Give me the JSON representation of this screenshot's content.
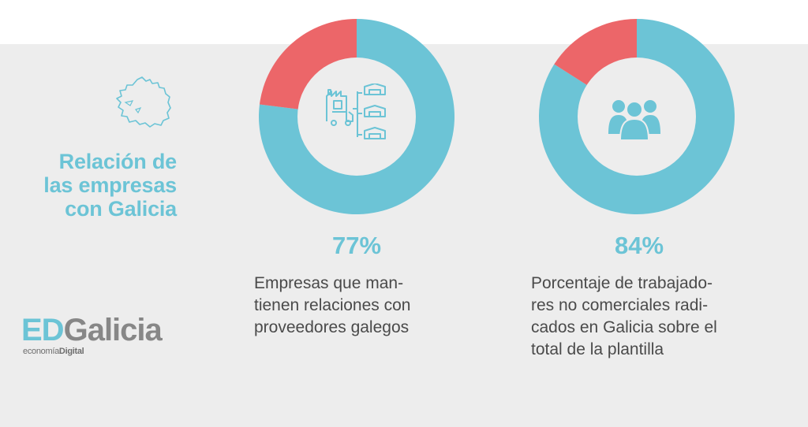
{
  "title_lines": [
    "Relación de",
    "las empresas",
    "con Galicia"
  ],
  "logo": {
    "prefix": "ED",
    "main": "Galicia",
    "sub_light": "economía",
    "sub_bold": "Digital"
  },
  "colors": {
    "primary": "#6cc4d6",
    "secondary": "#ec6669",
    "background": "#ededed",
    "text": "#4a4a4a"
  },
  "chart_data": [
    {
      "type": "pie",
      "style": "donut",
      "values": [
        77,
        23
      ],
      "unit": "%",
      "colors": [
        "#6cc4d6",
        "#ec6669"
      ],
      "label": "77%",
      "center_icon": "factory-suppliers-icon",
      "description_lines": [
        "Empresas que man-",
        "tienen relaciones con",
        "proveedores galegos"
      ]
    },
    {
      "type": "pie",
      "style": "donut",
      "values": [
        84,
        16
      ],
      "unit": "%",
      "colors": [
        "#6cc4d6",
        "#ec6669"
      ],
      "label": "84%",
      "center_icon": "people-group-icon",
      "description_lines": [
        "Porcentaje de trabajado-",
        "res no comerciales radi-",
        "cados en Galicia sobre el",
        "total de la plantilla"
      ]
    }
  ]
}
